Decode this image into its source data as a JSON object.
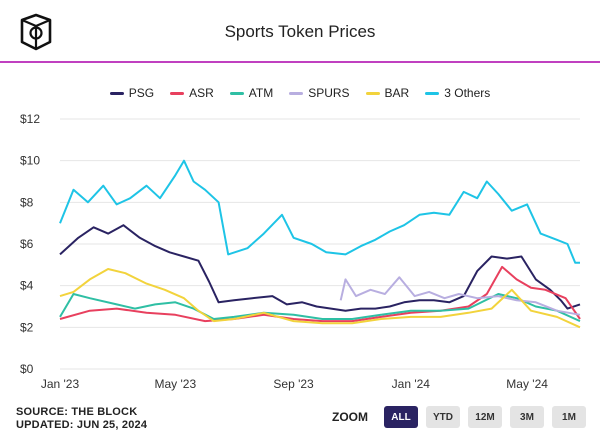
{
  "header": {
    "title": "Sports Token Prices"
  },
  "footer": {
    "source": "SOURCE: THE BLOCK",
    "updated": "UPDATED: JUN 25, 2024"
  },
  "zoom": {
    "label": "ZOOM",
    "buttons": [
      "ALL",
      "YTD",
      "12M",
      "3M",
      "1M"
    ],
    "active": "ALL"
  },
  "colors": {
    "accent_rule": "#c040c0",
    "grid": "#e6e6e6",
    "axis_text": "#333333",
    "zoom_active": "#2a2362"
  },
  "chart_data": {
    "type": "line",
    "title": "Sports Token Prices",
    "xlabel": "",
    "ylabel": "",
    "y_unit": "$",
    "ylim": [
      0,
      12
    ],
    "y_ticks": [
      "$0",
      "$2",
      "$4",
      "$6",
      "$8",
      "$10",
      "$12"
    ],
    "x_ticks": [
      "Jan '23",
      "May '23",
      "Sep '23",
      "Jan '24",
      "May '24"
    ],
    "x_tick_dates": [
      "2023-01-01",
      "2023-05-01",
      "2023-09-01",
      "2024-01-01",
      "2024-05-01"
    ],
    "xlim": [
      "2023-01-01",
      "2024-06-25"
    ],
    "grid": true,
    "legend_position": "top",
    "series": [
      {
        "name": "PSG",
        "color": "#2a2362",
        "points": [
          [
            "2023-01-01",
            5.5
          ],
          [
            "2023-01-20",
            6.3
          ],
          [
            "2023-02-05",
            6.8
          ],
          [
            "2023-02-20",
            6.5
          ],
          [
            "2023-03-08",
            6.9
          ],
          [
            "2023-03-25",
            6.3
          ],
          [
            "2023-04-10",
            5.9
          ],
          [
            "2023-04-25",
            5.6
          ],
          [
            "2023-05-10",
            5.4
          ],
          [
            "2023-05-25",
            5.2
          ],
          [
            "2023-06-05",
            4.2
          ],
          [
            "2023-06-15",
            3.2
          ],
          [
            "2023-07-01",
            3.3
          ],
          [
            "2023-07-20",
            3.4
          ],
          [
            "2023-08-10",
            3.5
          ],
          [
            "2023-08-25",
            3.1
          ],
          [
            "2023-09-10",
            3.2
          ],
          [
            "2023-09-25",
            3.0
          ],
          [
            "2023-10-10",
            2.9
          ],
          [
            "2023-10-25",
            2.8
          ],
          [
            "2023-11-10",
            2.9
          ],
          [
            "2023-11-25",
            2.9
          ],
          [
            "2023-12-10",
            3.0
          ],
          [
            "2023-12-25",
            3.2
          ],
          [
            "2024-01-10",
            3.3
          ],
          [
            "2024-01-25",
            3.3
          ],
          [
            "2024-02-10",
            3.2
          ],
          [
            "2024-02-25",
            3.5
          ],
          [
            "2024-03-10",
            4.7
          ],
          [
            "2024-03-25",
            5.4
          ],
          [
            "2024-04-10",
            5.3
          ],
          [
            "2024-04-25",
            5.4
          ],
          [
            "2024-05-10",
            4.3
          ],
          [
            "2024-05-25",
            3.8
          ],
          [
            "2024-06-05",
            3.3
          ],
          [
            "2024-06-12",
            2.9
          ],
          [
            "2024-06-25",
            3.1
          ]
        ]
      },
      {
        "name": "ASR",
        "color": "#e8405e",
        "points": [
          [
            "2023-01-01",
            2.4
          ],
          [
            "2023-02-01",
            2.8
          ],
          [
            "2023-03-01",
            2.9
          ],
          [
            "2023-04-01",
            2.7
          ],
          [
            "2023-05-01",
            2.6
          ],
          [
            "2023-06-01",
            2.3
          ],
          [
            "2023-07-01",
            2.4
          ],
          [
            "2023-08-01",
            2.6
          ],
          [
            "2023-09-01",
            2.4
          ],
          [
            "2023-10-01",
            2.3
          ],
          [
            "2023-11-01",
            2.3
          ],
          [
            "2023-12-01",
            2.5
          ],
          [
            "2024-01-01",
            2.7
          ],
          [
            "2024-02-01",
            2.8
          ],
          [
            "2024-03-01",
            3.0
          ],
          [
            "2024-03-20",
            3.6
          ],
          [
            "2024-04-05",
            4.9
          ],
          [
            "2024-04-20",
            4.3
          ],
          [
            "2024-05-05",
            3.9
          ],
          [
            "2024-05-20",
            3.8
          ],
          [
            "2024-06-10",
            3.4
          ],
          [
            "2024-06-25",
            2.4
          ]
        ]
      },
      {
        "name": "ATM",
        "color": "#2fbfa4",
        "points": [
          [
            "2023-01-01",
            2.5
          ],
          [
            "2023-01-15",
            3.6
          ],
          [
            "2023-02-01",
            3.4
          ],
          [
            "2023-03-01",
            3.1
          ],
          [
            "2023-03-20",
            2.9
          ],
          [
            "2023-04-10",
            3.1
          ],
          [
            "2023-05-01",
            3.2
          ],
          [
            "2023-05-20",
            2.9
          ],
          [
            "2023-06-10",
            2.4
          ],
          [
            "2023-07-01",
            2.5
          ],
          [
            "2023-08-01",
            2.7
          ],
          [
            "2023-09-01",
            2.6
          ],
          [
            "2023-10-01",
            2.4
          ],
          [
            "2023-11-01",
            2.4
          ],
          [
            "2023-12-01",
            2.6
          ],
          [
            "2024-01-01",
            2.8
          ],
          [
            "2024-02-01",
            2.8
          ],
          [
            "2024-03-01",
            2.9
          ],
          [
            "2024-04-01",
            3.6
          ],
          [
            "2024-04-20",
            3.4
          ],
          [
            "2024-05-10",
            3.0
          ],
          [
            "2024-06-01",
            2.8
          ],
          [
            "2024-06-25",
            2.3
          ]
        ]
      },
      {
        "name": "SPURS",
        "color": "#b8aee0",
        "points": [
          [
            "2023-10-20",
            3.3
          ],
          [
            "2023-10-25",
            4.3
          ],
          [
            "2023-11-05",
            3.5
          ],
          [
            "2023-11-20",
            3.8
          ],
          [
            "2023-12-05",
            3.6
          ],
          [
            "2023-12-20",
            4.4
          ],
          [
            "2024-01-05",
            3.5
          ],
          [
            "2024-01-20",
            3.7
          ],
          [
            "2024-02-05",
            3.4
          ],
          [
            "2024-02-20",
            3.6
          ],
          [
            "2024-03-10",
            3.4
          ],
          [
            "2024-04-01",
            3.5
          ],
          [
            "2024-04-20",
            3.3
          ],
          [
            "2024-05-10",
            3.2
          ],
          [
            "2024-06-01",
            2.8
          ],
          [
            "2024-06-25",
            2.6
          ]
        ]
      },
      {
        "name": "BAR",
        "color": "#f2d33c",
        "points": [
          [
            "2023-01-01",
            3.5
          ],
          [
            "2023-01-15",
            3.7
          ],
          [
            "2023-02-01",
            4.3
          ],
          [
            "2023-02-20",
            4.8
          ],
          [
            "2023-03-10",
            4.6
          ],
          [
            "2023-04-01",
            4.1
          ],
          [
            "2023-04-20",
            3.8
          ],
          [
            "2023-05-10",
            3.4
          ],
          [
            "2023-05-25",
            2.8
          ],
          [
            "2023-06-10",
            2.3
          ],
          [
            "2023-07-01",
            2.4
          ],
          [
            "2023-08-01",
            2.7
          ],
          [
            "2023-09-01",
            2.3
          ],
          [
            "2023-10-01",
            2.2
          ],
          [
            "2023-11-01",
            2.2
          ],
          [
            "2023-12-01",
            2.4
          ],
          [
            "2024-01-01",
            2.5
          ],
          [
            "2024-02-01",
            2.5
          ],
          [
            "2024-03-01",
            2.7
          ],
          [
            "2024-03-25",
            2.9
          ],
          [
            "2024-04-15",
            3.8
          ],
          [
            "2024-05-05",
            2.8
          ],
          [
            "2024-06-01",
            2.5
          ],
          [
            "2024-06-25",
            2.0
          ]
        ]
      },
      {
        "name": "3 Others",
        "color": "#1ec4e6",
        "points": [
          [
            "2023-01-01",
            7.0
          ],
          [
            "2023-01-15",
            8.6
          ],
          [
            "2023-01-30",
            8.0
          ],
          [
            "2023-02-15",
            8.8
          ],
          [
            "2023-03-01",
            7.9
          ],
          [
            "2023-03-15",
            8.2
          ],
          [
            "2023-04-01",
            8.8
          ],
          [
            "2023-04-15",
            8.2
          ],
          [
            "2023-05-01",
            9.3
          ],
          [
            "2023-05-10",
            10.0
          ],
          [
            "2023-05-20",
            9.0
          ],
          [
            "2023-06-01",
            8.6
          ],
          [
            "2023-06-15",
            8.0
          ],
          [
            "2023-06-25",
            5.5
          ],
          [
            "2023-07-15",
            5.8
          ],
          [
            "2023-08-01",
            6.5
          ],
          [
            "2023-08-20",
            7.4
          ],
          [
            "2023-09-01",
            6.3
          ],
          [
            "2023-09-20",
            6.0
          ],
          [
            "2023-10-05",
            5.6
          ],
          [
            "2023-10-25",
            5.5
          ],
          [
            "2023-11-10",
            5.9
          ],
          [
            "2023-11-25",
            6.2
          ],
          [
            "2023-12-10",
            6.6
          ],
          [
            "2023-12-25",
            6.9
          ],
          [
            "2024-01-10",
            7.4
          ],
          [
            "2024-01-25",
            7.5
          ],
          [
            "2024-02-10",
            7.4
          ],
          [
            "2024-02-25",
            8.5
          ],
          [
            "2024-03-10",
            8.2
          ],
          [
            "2024-03-20",
            9.0
          ],
          [
            "2024-04-01",
            8.4
          ],
          [
            "2024-04-15",
            7.6
          ],
          [
            "2024-05-01",
            7.9
          ],
          [
            "2024-05-15",
            6.5
          ],
          [
            "2024-06-01",
            6.2
          ],
          [
            "2024-06-12",
            6.0
          ],
          [
            "2024-06-20",
            5.1
          ],
          [
            "2024-06-25",
            5.1
          ]
        ]
      }
    ]
  }
}
